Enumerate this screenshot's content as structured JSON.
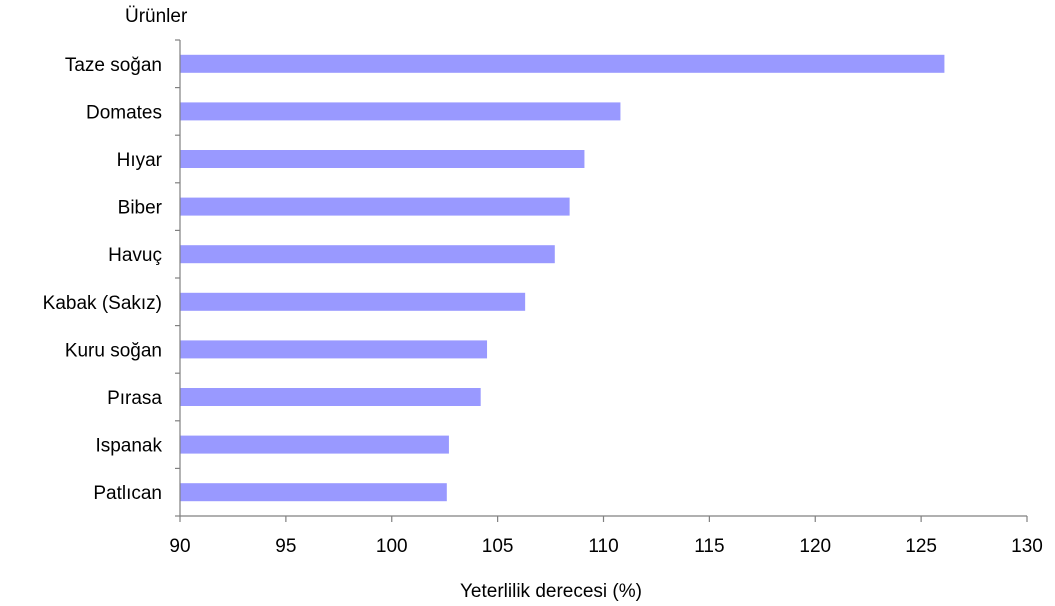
{
  "chart_data": {
    "type": "bar",
    "orientation": "horizontal",
    "ylabel": "Ürünler",
    "xlabel": "Yeterlilik derecesi (%)",
    "categories": [
      "Taze soğan",
      "Domates",
      "Hıyar",
      "Biber",
      "Havuç",
      "Kabak (Sakız)",
      "Kuru soğan",
      "Pırasa",
      "Ispanak",
      "Patlıcan"
    ],
    "values": [
      126.1,
      110.8,
      109.1,
      108.4,
      107.7,
      106.3,
      104.5,
      104.2,
      102.7,
      102.6
    ],
    "xlim": [
      90,
      130
    ],
    "xticks": [
      90,
      95,
      100,
      105,
      110,
      115,
      120,
      125,
      130
    ],
    "grid": false,
    "legend": "none",
    "bar_color": "#9999ff"
  }
}
